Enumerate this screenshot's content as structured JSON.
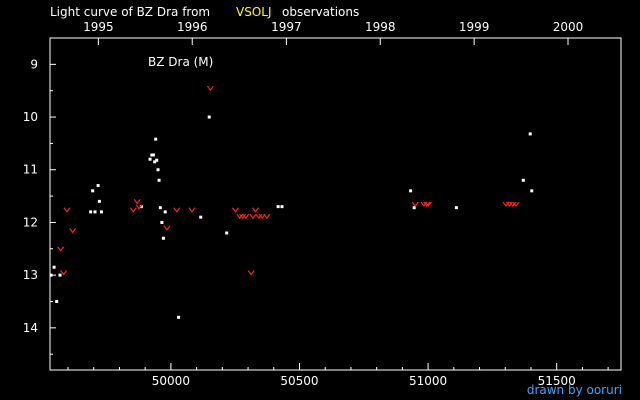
{
  "title": {
    "prefix": "Light curve of BZ Dra from",
    "source": "VSOLJ",
    "suffix": "observations",
    "prefix_color": "#ffffff",
    "source_color": "#ffff00",
    "suffix_color": "#ffffff"
  },
  "credit": "drawn by ooruri",
  "credit_color": "#38a8ff",
  "colors": {
    "background": "#000000",
    "axes": "#ffffff",
    "visual": "#ffffff",
    "fainter_than": "#ff2020"
  },
  "chart_data": {
    "type": "scatter",
    "title": "Light curve of BZ Dra from VSOLJ observations",
    "panel_label": "BZ Dra (M)",
    "xlabel": "",
    "ylabel": "",
    "xlim": [
      49530,
      51750
    ],
    "ylim": [
      14.8,
      8.5
    ],
    "y_inverted": true,
    "grid": false,
    "x_ticks_bottom": [
      {
        "value": 50000,
        "label": "50000"
      },
      {
        "value": 50500,
        "label": "50500"
      },
      {
        "value": 51000,
        "label": "51000"
      },
      {
        "value": 51500,
        "label": "51500"
      }
    ],
    "x_ticks_top": [
      {
        "value": 49718,
        "label": "1995"
      },
      {
        "value": 50083,
        "label": "1996"
      },
      {
        "value": 50449,
        "label": "1997"
      },
      {
        "value": 50814,
        "label": "1998"
      },
      {
        "value": 51179,
        "label": "1999"
      },
      {
        "value": 51544,
        "label": "2000"
      }
    ],
    "y_ticks": [
      9,
      10,
      11,
      12,
      13,
      14
    ],
    "series": [
      {
        "symbol": "dot",
        "color": "#ffffff",
        "points": [
          [
            49534,
            13.0
          ],
          [
            49546,
            12.85
          ],
          [
            49556,
            13.5
          ],
          [
            49569,
            13.0
          ],
          [
            49688,
            11.8
          ],
          [
            49696,
            11.4
          ],
          [
            49705,
            11.8
          ],
          [
            49717,
            11.3
          ],
          [
            49722,
            11.6
          ],
          [
            49730,
            11.8
          ],
          [
            49885,
            11.7
          ],
          [
            49919,
            10.8
          ],
          [
            49926,
            10.72
          ],
          [
            49932,
            10.72
          ],
          [
            49937,
            10.85
          ],
          [
            49941,
            10.42
          ],
          [
            49945,
            10.82
          ],
          [
            49950,
            11.0
          ],
          [
            49954,
            11.2
          ],
          [
            49959,
            11.72
          ],
          [
            49965,
            12.0
          ],
          [
            49971,
            12.3
          ],
          [
            49978,
            11.8
          ],
          [
            50030,
            13.8
          ],
          [
            50116,
            11.9
          ],
          [
            50149,
            10.0
          ],
          [
            50217,
            12.2
          ],
          [
            50417,
            11.7
          ],
          [
            50432,
            11.7
          ],
          [
            50932,
            11.4
          ],
          [
            50946,
            11.72
          ],
          [
            51110,
            11.72
          ],
          [
            51370,
            11.2
          ],
          [
            51397,
            10.32
          ],
          [
            51403,
            11.4
          ]
        ]
      },
      {
        "symbol": "fainter-than",
        "color": "#ff2020",
        "points": [
          [
            49571,
            12.5
          ],
          [
            49583,
            12.95
          ],
          [
            49596,
            11.76
          ],
          [
            49618,
            12.15
          ],
          [
            49854,
            11.76
          ],
          [
            49869,
            11.6
          ],
          [
            49876,
            11.7
          ],
          [
            49985,
            12.1
          ],
          [
            50023,
            11.76
          ],
          [
            50082,
            11.76
          ],
          [
            50154,
            9.45
          ],
          [
            50251,
            11.76
          ],
          [
            50268,
            11.88
          ],
          [
            50279,
            11.88
          ],
          [
            50291,
            11.88
          ],
          [
            50312,
            12.95
          ],
          [
            50319,
            11.88
          ],
          [
            50329,
            11.76
          ],
          [
            50342,
            11.88
          ],
          [
            50355,
            11.88
          ],
          [
            50373,
            11.88
          ],
          [
            50950,
            11.65
          ],
          [
            50984,
            11.65
          ],
          [
            50995,
            11.65
          ],
          [
            51001,
            11.65
          ],
          [
            51303,
            11.65
          ],
          [
            51316,
            11.65
          ],
          [
            51329,
            11.65
          ],
          [
            51342,
            11.65
          ]
        ]
      }
    ]
  }
}
